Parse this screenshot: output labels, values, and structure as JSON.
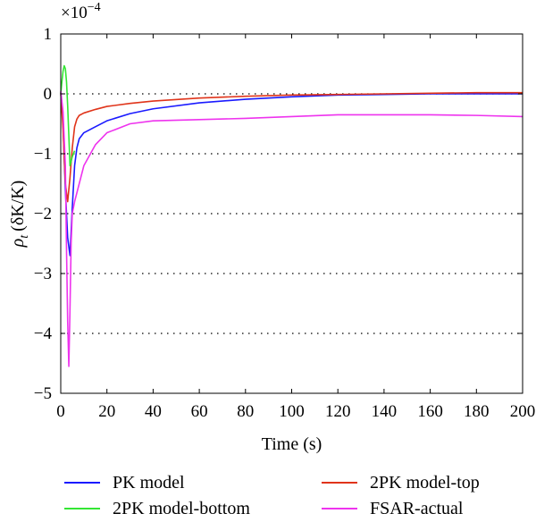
{
  "chart_data": {
    "type": "line",
    "exponent_label": {
      "base": "×10",
      "power": "−4"
    },
    "xlabel": "Time (s)",
    "ylabel": {
      "symbol": "ρ",
      "subscript": "t",
      "unit": "(δK/K)"
    },
    "xlim": [
      0,
      200
    ],
    "ylim": [
      -5,
      1
    ],
    "xticks": [
      0,
      20,
      40,
      60,
      80,
      100,
      120,
      140,
      160,
      180,
      200
    ],
    "yticks": [
      1,
      0,
      -1,
      -2,
      -3,
      -4,
      -5
    ],
    "ytick_labels": [
      "1",
      "0",
      "−1",
      "−2",
      "−3",
      "−4",
      "−5"
    ],
    "grid": {
      "horizontal_dotted": true,
      "vertical": false
    },
    "legend_position": "bottom",
    "series": [
      {
        "name": "PK model",
        "color": "#1a1aff",
        "x": [
          0,
          1,
          2,
          3,
          4,
          5,
          6,
          7,
          8,
          10,
          15,
          20,
          30,
          40,
          60,
          80,
          100,
          120,
          140,
          160,
          180,
          200
        ],
        "y": [
          0.02,
          -0.5,
          -1.6,
          -2.4,
          -2.7,
          -1.9,
          -1.2,
          -0.9,
          -0.75,
          -0.65,
          -0.55,
          -0.45,
          -0.33,
          -0.25,
          -0.15,
          -0.09,
          -0.05,
          -0.02,
          -0.01,
          0.0,
          0.0,
          0.0
        ]
      },
      {
        "name": "2PK model-top",
        "color": "#e0341a",
        "x": [
          0,
          1,
          2,
          3,
          4,
          5,
          6,
          7,
          8,
          10,
          15,
          20,
          30,
          40,
          60,
          80,
          100,
          120,
          140,
          160,
          180,
          200
        ],
        "y": [
          0.02,
          -0.6,
          -1.5,
          -1.8,
          -1.4,
          -0.9,
          -0.55,
          -0.42,
          -0.36,
          -0.32,
          -0.26,
          -0.21,
          -0.16,
          -0.12,
          -0.07,
          -0.04,
          -0.02,
          -0.01,
          0.0,
          0.01,
          0.02,
          0.02
        ]
      },
      {
        "name": "2PK model-bottom",
        "color": "#33e633",
        "x": [
          0,
          0.5,
          1,
          1.5,
          2,
          2.5,
          3,
          3.5,
          4,
          5,
          6
        ],
        "y": [
          0.0,
          0.2,
          0.38,
          0.47,
          0.42,
          0.2,
          -0.2,
          -0.7,
          -1.2,
          -1.05,
          -0.95
        ]
      },
      {
        "name": "FSAR-actual",
        "color": "#ee33ee",
        "x": [
          0,
          1,
          2,
          2.5,
          3,
          3.5,
          4,
          4.5,
          5,
          6,
          7,
          8,
          10,
          15,
          20,
          30,
          40,
          60,
          80,
          100,
          120,
          140,
          160,
          180,
          200
        ],
        "y": [
          0.05,
          -0.3,
          -1.2,
          -2.6,
          -3.8,
          -4.55,
          -3.6,
          -2.5,
          -2.0,
          -1.8,
          -1.65,
          -1.5,
          -1.2,
          -0.85,
          -0.65,
          -0.5,
          -0.45,
          -0.43,
          -0.41,
          -0.38,
          -0.35,
          -0.35,
          -0.35,
          -0.36,
          -0.38
        ]
      }
    ]
  }
}
